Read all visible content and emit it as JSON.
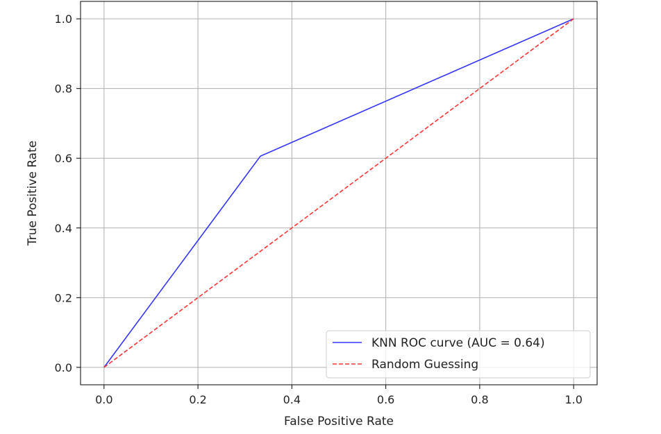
{
  "chart_data": {
    "type": "line",
    "title": "",
    "xlabel": "False Positive Rate",
    "ylabel": "True Positive Rate",
    "xlim": [
      -0.05,
      1.05
    ],
    "ylim": [
      -0.05,
      1.05
    ],
    "xticks": [
      0.0,
      0.2,
      0.4,
      0.6,
      0.8,
      1.0
    ],
    "xtick_labels": [
      "0.0",
      "0.2",
      "0.4",
      "0.6",
      "0.8",
      "1.0"
    ],
    "yticks": [
      0.0,
      0.2,
      0.4,
      0.6,
      0.8,
      1.0
    ],
    "ytick_labels": [
      "0.0",
      "0.2",
      "0.4",
      "0.6",
      "0.8",
      "1.0"
    ],
    "grid": true,
    "legend_position": "lower-right",
    "series": [
      {
        "name": "KNN ROC curve (AUC = 0.64)",
        "x": [
          0.0,
          0.333,
          1.0
        ],
        "y": [
          0.0,
          0.606,
          1.0
        ],
        "color": "#3333ff",
        "linestyle": "solid"
      },
      {
        "name": "Random Guessing",
        "x": [
          0.0,
          1.0
        ],
        "y": [
          0.0,
          1.0
        ],
        "color": "#ff3333",
        "linestyle": "dashed"
      }
    ]
  }
}
